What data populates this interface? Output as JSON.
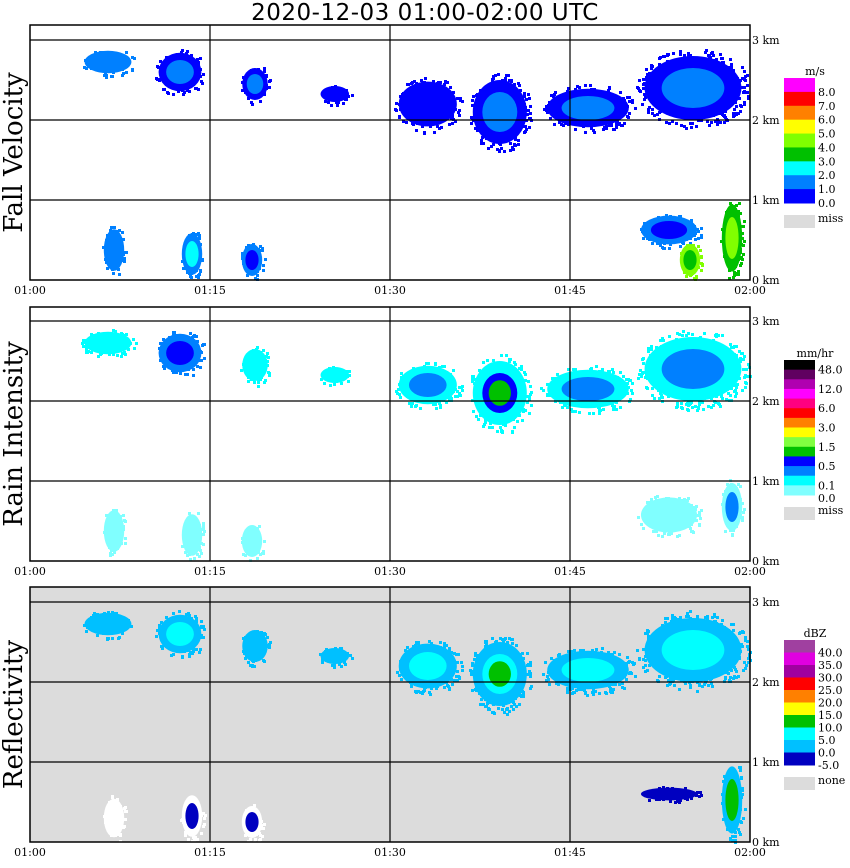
{
  "title": "2020-12-03   01:00-02:00 UTC",
  "chart_data": [
    {
      "type": "heatmap",
      "title": "Fall Velocity",
      "unit": "m/s",
      "background": "#ffffff",
      "legend": {
        "labels": [
          "8.0",
          "7.0",
          "6.0",
          "5.0",
          "4.0",
          "3.0",
          "2.0",
          "1.0",
          "0.0"
        ],
        "colors": [
          "#ff00ff",
          "#ff0000",
          "#ff8000",
          "#ffff00",
          "#80ff00",
          "#00c000",
          "#00ffff",
          "#0080ff",
          "#0000ff"
        ],
        "miss_label": "miss",
        "miss_color": "#dcdcdc"
      },
      "echoes": [
        {
          "t": [
            4.2,
            8.8
          ],
          "h": [
            2.55,
            2.9
          ],
          "c": "#0080ff",
          "core": null
        },
        {
          "t": [
            10.4,
            14.6
          ],
          "h": [
            2.3,
            2.9
          ],
          "c": "#0000ff",
          "core": "#0080ff"
        },
        {
          "t": [
            17.5,
            20.0
          ],
          "h": [
            2.2,
            2.7
          ],
          "c": "#0000ff",
          "core": "#0080ff"
        },
        {
          "t": [
            24.0,
            26.8
          ],
          "h": [
            2.2,
            2.45
          ],
          "c": "#0000ff",
          "core": null
        },
        {
          "t": [
            30.3,
            36.0
          ],
          "h": [
            1.85,
            2.55
          ],
          "c": "#0000ff",
          "core": "#0000ff"
        },
        {
          "t": [
            36.5,
            41.8
          ],
          "h": [
            1.6,
            2.6
          ],
          "c": "#0000ff",
          "core": "#0080ff"
        },
        {
          "t": [
            42.5,
            50.5
          ],
          "h": [
            1.85,
            2.45
          ],
          "c": "#0000ff",
          "core": "#0080ff"
        },
        {
          "t": [
            50.5,
            60.0
          ],
          "h": [
            1.9,
            2.9
          ],
          "c": "#0000ff",
          "core": "#0080ff"
        },
        {
          "t": [
            6.0,
            8.0
          ],
          "h": [
            0.05,
            0.7
          ],
          "c": "#0080ff",
          "core": null
        },
        {
          "t": [
            12.5,
            14.5
          ],
          "h": [
            0.0,
            0.65
          ],
          "c": "#0080ff",
          "core": "#00ffff"
        },
        {
          "t": [
            17.5,
            19.5
          ],
          "h": [
            0.0,
            0.5
          ],
          "c": "#0080ff",
          "core": "#0000ff"
        },
        {
          "t": [
            50.5,
            56.0
          ],
          "h": [
            0.4,
            0.85
          ],
          "c": "#0080ff",
          "core": "#0000ff"
        },
        {
          "t": [
            54.0,
            56.0
          ],
          "h": [
            0.0,
            0.5
          ],
          "c": "#80ff00",
          "core": "#00c000"
        },
        {
          "t": [
            57.5,
            59.5
          ],
          "h": [
            0.0,
            1.05
          ],
          "c": "#00c000",
          "core": "#80ff00"
        }
      ]
    },
    {
      "type": "heatmap",
      "title": "Rain Intensity",
      "unit": "mm/hr",
      "background": "#ffffff",
      "legend": {
        "labels": [
          "48.0",
          "",
          "12.0",
          "",
          "6.0",
          "",
          "3.0",
          "",
          "1.5",
          "",
          "0.5",
          "",
          "0.1",
          "0.0"
        ],
        "colors": [
          "#000000",
          "#600060",
          "#b000b0",
          "#ff00ff",
          "#ff0080",
          "#ff0000",
          "#ff8000",
          "#ffff00",
          "#80ff40",
          "#00c000",
          "#0000ff",
          "#0080ff",
          "#00ffff",
          "#80ffff"
        ],
        "miss_label": "miss",
        "miss_color": "#dcdcdc"
      },
      "echoes": [
        {
          "t": [
            4.2,
            8.8
          ],
          "h": [
            2.55,
            2.9
          ],
          "c": "#00ffff",
          "core": null
        },
        {
          "t": [
            10.4,
            14.6
          ],
          "h": [
            2.3,
            2.9
          ],
          "c": "#0080ff",
          "core": "#0000ff"
        },
        {
          "t": [
            17.5,
            20.0
          ],
          "h": [
            2.2,
            2.7
          ],
          "c": "#00ffff",
          "core": null
        },
        {
          "t": [
            24.0,
            26.8
          ],
          "h": [
            2.2,
            2.45
          ],
          "c": "#00ffff",
          "core": null
        },
        {
          "t": [
            30.3,
            36.0
          ],
          "h": [
            1.9,
            2.5
          ],
          "c": "#00ffff",
          "core": "#0080ff"
        },
        {
          "t": [
            36.5,
            41.8
          ],
          "h": [
            1.6,
            2.6
          ],
          "c": "#00ffff",
          "core": "#0000ff",
          "core2": "#00c000"
        },
        {
          "t": [
            42.5,
            50.5
          ],
          "h": [
            1.85,
            2.45
          ],
          "c": "#00ffff",
          "core": "#0080ff"
        },
        {
          "t": [
            50.5,
            60.0
          ],
          "h": [
            1.9,
            2.9
          ],
          "c": "#00ffff",
          "core": "#0080ff"
        },
        {
          "t": [
            6.0,
            8.0
          ],
          "h": [
            0.05,
            0.7
          ],
          "c": "#80ffff",
          "core": null
        },
        {
          "t": [
            12.5,
            14.5
          ],
          "h": [
            0.0,
            0.65
          ],
          "c": "#80ffff",
          "core": null
        },
        {
          "t": [
            17.5,
            19.5
          ],
          "h": [
            0.0,
            0.5
          ],
          "c": "#80ffff",
          "core": null
        },
        {
          "t": [
            50.5,
            56.0
          ],
          "h": [
            0.3,
            0.85
          ],
          "c": "#80ffff",
          "core": null
        },
        {
          "t": [
            57.5,
            59.5
          ],
          "h": [
            0.3,
            1.05
          ],
          "c": "#80ffff",
          "core": "#0080ff"
        }
      ]
    },
    {
      "type": "heatmap",
      "title": "Reflectivity",
      "unit": "dBZ",
      "background": "#dcdcdc",
      "legend": {
        "labels": [
          "40.0",
          "35.0",
          "30.0",
          "25.0",
          "20.0",
          "15.0",
          "10.0",
          "5.0",
          "0.0",
          "-5.0"
        ],
        "colors": [
          "#a040a0",
          "#e000e0",
          "#a000a0",
          "#ff0000",
          "#ff8000",
          "#ffff00",
          "#00c000",
          "#00ffff",
          "#00c0ff",
          "#0000c0"
        ],
        "miss_label": "none",
        "miss_color": "#dcdcdc"
      },
      "echoes": [
        {
          "t": [
            4.2,
            8.8
          ],
          "h": [
            2.55,
            2.9
          ],
          "c": "#00c0ff",
          "core": null
        },
        {
          "t": [
            10.4,
            14.6
          ],
          "h": [
            2.3,
            2.9
          ],
          "c": "#00c0ff",
          "core": "#00ffff"
        },
        {
          "t": [
            17.5,
            20.0
          ],
          "h": [
            2.2,
            2.7
          ],
          "c": "#00c0ff",
          "core": null
        },
        {
          "t": [
            24.0,
            26.8
          ],
          "h": [
            2.2,
            2.45
          ],
          "c": "#00c0ff",
          "core": null
        },
        {
          "t": [
            30.3,
            36.0
          ],
          "h": [
            1.85,
            2.55
          ],
          "c": "#00c0ff",
          "core": "#00ffff"
        },
        {
          "t": [
            36.5,
            41.8
          ],
          "h": [
            1.6,
            2.6
          ],
          "c": "#00c0ff",
          "core": "#00ffff",
          "core2": "#00c000"
        },
        {
          "t": [
            42.5,
            50.5
          ],
          "h": [
            1.85,
            2.45
          ],
          "c": "#00c0ff",
          "core": "#00ffff"
        },
        {
          "t": [
            50.5,
            60.0
          ],
          "h": [
            1.9,
            2.9
          ],
          "c": "#00c0ff",
          "core": "#00ffff"
        },
        {
          "t": [
            6.0,
            8.0
          ],
          "h": [
            0.0,
            0.6
          ],
          "c": "#ffffff",
          "core": null
        },
        {
          "t": [
            12.5,
            14.5
          ],
          "h": [
            0.0,
            0.65
          ],
          "c": "#ffffff",
          "core": "#0000c0"
        },
        {
          "t": [
            17.5,
            19.5
          ],
          "h": [
            0.0,
            0.5
          ],
          "c": "#ffffff",
          "core": "#0000c0"
        },
        {
          "t": [
            50.5,
            56.0
          ],
          "h": [
            0.5,
            0.7
          ],
          "c": "#0000c0",
          "core": null
        },
        {
          "t": [
            57.5,
            59.5
          ],
          "h": [
            0.0,
            1.05
          ],
          "c": "#00c0ff",
          "core": "#00c000"
        }
      ]
    }
  ],
  "x_ticks": [
    "01:00",
    "01:15",
    "01:30",
    "01:45",
    "02:00"
  ],
  "y_ticks": [
    "0 km",
    "1 km",
    "2 km",
    "3 km"
  ],
  "xlim_minutes": [
    0,
    60
  ],
  "ylim_km": [
    0,
    3.2
  ]
}
